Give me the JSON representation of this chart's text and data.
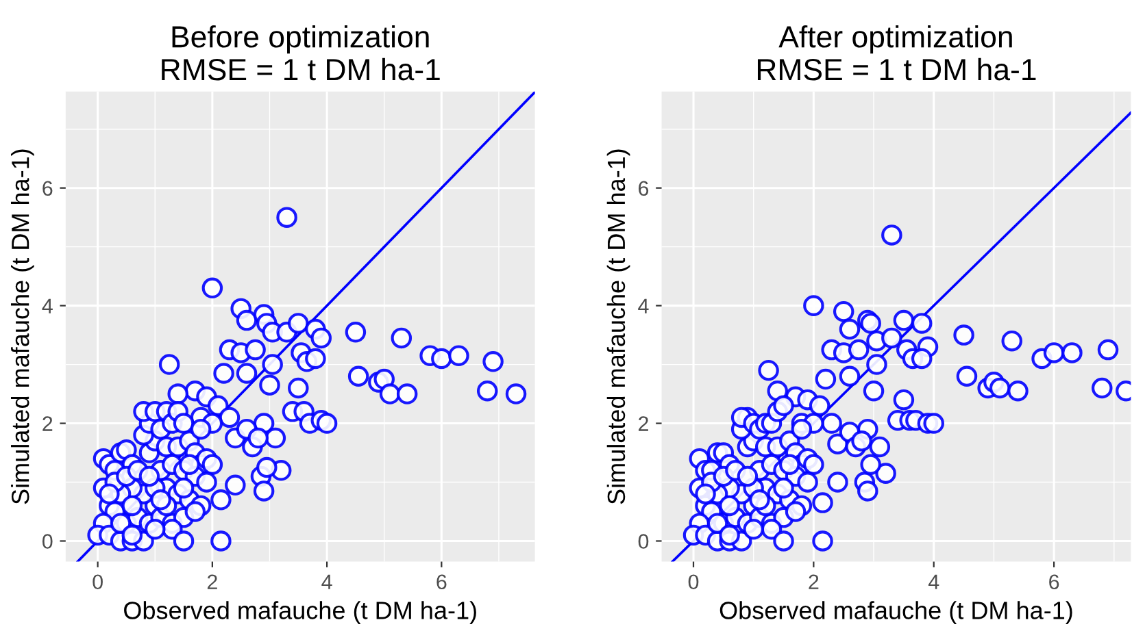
{
  "chart_data": [
    {
      "type": "scatter",
      "title": "Before optimization\nRMSE = 1 t DM ha-1",
      "xlabel": "Observed mafauche (t DM ha-1)",
      "ylabel": "Simulated mafauche (t DM ha-1)",
      "xlim": [
        -0.56,
        7.63
      ],
      "ylim": [
        -0.35,
        7.64
      ],
      "xticks": [
        0,
        2,
        4,
        6
      ],
      "yticks": [
        0,
        2,
        4,
        6
      ],
      "grid": true,
      "series": [
        {
          "marker": "circle",
          "color": "#0000ff",
          "x": [
            3.3,
            2.0,
            2.5,
            2.6,
            2.9,
            2.95,
            3.05,
            3.3,
            3.5,
            3.8,
            3.9,
            4.5,
            5.3,
            5.8,
            6.0,
            6.3,
            6.9,
            4.55,
            4.9,
            5.0,
            5.1,
            5.4,
            6.8,
            7.3,
            2.3,
            2.5,
            2.75,
            3.05,
            3.55,
            3.65,
            3.8,
            1.25,
            2.2,
            2.6,
            3.0,
            3.5,
            3.4,
            3.6,
            3.7,
            3.9,
            4.0,
            2.9,
            3.1,
            2.4,
            2.6,
            2.7,
            2.8,
            3.2,
            2.85,
            2.9,
            2.95,
            2.4,
            2.15,
            2.15,
            1.7,
            1.4,
            1.9,
            2.1,
            2.3,
            1.8,
            2.0,
            0.1,
            0.2,
            0.4,
            0.5,
            0.6,
            0.3,
            0.1,
            0.2,
            0.3,
            0.1,
            0.0,
            0.2,
            0.4,
            0.6,
            0.8,
            0.5,
            0.7,
            0.9,
            1.0,
            0.8,
            0.6,
            0.4,
            0.3,
            0.5,
            0.7,
            0.9,
            1.0,
            0.8,
            0.9,
            0.8,
            1.0,
            1.1,
            1.2,
            1.3,
            1.4,
            1.5,
            1.2,
            1.4,
            1.6,
            1.7,
            1.8,
            1.9,
            2.0,
            1.1,
            1.3,
            1.5,
            1.7,
            1.9,
            1.2,
            1.4,
            1.6,
            1.8,
            1.0,
            1.1,
            1.3,
            1.5,
            1.7,
            1.3,
            1.5,
            1.0,
            0.6,
            0.2,
            1.5,
            1.6,
            1.2,
            0.4,
            0.6,
            1.1,
            0.9,
            1.8
          ],
          "values": [
            5.5,
            4.3,
            3.95,
            3.75,
            3.85,
            3.7,
            3.55,
            3.55,
            3.7,
            3.6,
            3.45,
            3.55,
            3.45,
            3.15,
            3.1,
            3.15,
            3.05,
            2.8,
            2.7,
            2.75,
            2.5,
            2.5,
            2.55,
            2.5,
            3.25,
            3.2,
            3.25,
            3.0,
            3.2,
            3.05,
            3.1,
            3.0,
            2.85,
            2.85,
            2.65,
            2.6,
            2.2,
            2.2,
            2.0,
            2.05,
            2.0,
            2.0,
            1.75,
            1.75,
            1.9,
            1.6,
            1.75,
            1.2,
            1.1,
            0.85,
            1.25,
            0.95,
            0.7,
            0.0,
            2.55,
            2.5,
            2.45,
            2.3,
            2.1,
            2.1,
            2.0,
            1.4,
            1.3,
            1.5,
            1.55,
            1.3,
            1.2,
            0.9,
            0.6,
            0.5,
            0.3,
            0.1,
            0.1,
            0.0,
            0.0,
            0.0,
            0.3,
            0.4,
            0.3,
            0.6,
            0.8,
            0.9,
            0.8,
            1.0,
            1.1,
            1.2,
            1.5,
            1.7,
            1.8,
            2.0,
            2.2,
            2.2,
            1.9,
            2.2,
            2.0,
            2.2,
            2.0,
            1.6,
            1.6,
            1.7,
            1.5,
            1.3,
            1.4,
            1.3,
            1.2,
            1.3,
            1.2,
            1.1,
            1.0,
            0.9,
            0.8,
            0.7,
            0.6,
            0.9,
            0.4,
            0.3,
            0.4,
            0.5,
            0.2,
            0.0,
            0.2,
            0.6,
            0.8,
            0.9,
            1.3,
            0.6,
            0.3,
            0.1,
            0.7,
            1.1,
            1.9
          ]
        },
        {
          "type": "line",
          "color": "#0000ff",
          "x": [
            -0.35,
            7.63
          ],
          "values": [
            -0.35,
            7.63
          ]
        }
      ]
    },
    {
      "type": "scatter",
      "title": "After optimization\nRMSE = 1 t DM ha-1",
      "xlabel": "Observed mafauche (t DM ha-1)",
      "ylabel": "Simulated mafauche (t DM ha-1)",
      "xlim": [
        -0.53,
        7.28
      ],
      "ylim": [
        -0.35,
        7.64
      ],
      "xticks": [
        0,
        2,
        4,
        6
      ],
      "yticks": [
        0,
        2,
        4,
        6
      ],
      "grid": true,
      "series": [
        {
          "marker": "circle",
          "color": "#0000ff",
          "x": [
            3.3,
            2.0,
            2.5,
            2.6,
            2.9,
            2.95,
            3.05,
            3.3,
            3.5,
            3.8,
            3.9,
            4.5,
            5.3,
            5.8,
            6.0,
            6.3,
            6.9,
            4.55,
            4.9,
            5.0,
            5.1,
            5.4,
            6.8,
            7.2,
            2.3,
            2.5,
            2.75,
            3.05,
            3.55,
            3.65,
            3.8,
            1.25,
            2.2,
            2.6,
            3.0,
            3.5,
            3.4,
            3.6,
            3.7,
            3.9,
            4.0,
            2.9,
            3.1,
            2.4,
            2.6,
            2.7,
            2.8,
            3.2,
            2.85,
            2.9,
            2.95,
            2.4,
            2.15,
            2.15,
            1.7,
            1.4,
            1.9,
            2.1,
            2.3,
            1.8,
            2.0,
            0.1,
            0.2,
            0.4,
            0.5,
            0.6,
            0.3,
            0.1,
            0.2,
            0.3,
            0.1,
            0.0,
            0.2,
            0.4,
            0.6,
            0.8,
            0.5,
            0.7,
            0.9,
            1.0,
            0.8,
            0.6,
            0.4,
            0.3,
            0.5,
            0.7,
            0.9,
            1.0,
            0.8,
            0.9,
            0.8,
            1.0,
            1.1,
            1.2,
            1.3,
            1.4,
            1.5,
            1.2,
            1.4,
            1.6,
            1.7,
            1.8,
            1.9,
            2.0,
            1.1,
            1.3,
            1.5,
            1.7,
            1.9,
            1.2,
            1.4,
            1.6,
            1.8,
            1.0,
            1.1,
            1.3,
            1.5,
            1.7,
            1.3,
            1.5,
            1.0,
            0.6,
            0.2,
            1.5,
            1.6,
            1.2,
            0.4,
            0.6,
            1.1,
            0.9,
            1.8
          ],
          "values": [
            5.2,
            4.0,
            3.9,
            3.6,
            3.75,
            3.7,
            3.4,
            3.45,
            3.75,
            3.7,
            3.3,
            3.5,
            3.4,
            3.1,
            3.2,
            3.2,
            3.25,
            2.8,
            2.6,
            2.7,
            2.6,
            2.55,
            2.6,
            2.55,
            3.25,
            3.2,
            3.25,
            3.0,
            3.25,
            3.1,
            3.1,
            2.9,
            2.75,
            2.8,
            2.55,
            2.4,
            2.05,
            2.05,
            2.05,
            2.0,
            2.0,
            1.9,
            1.6,
            1.65,
            1.85,
            1.6,
            1.7,
            1.15,
            1.0,
            0.85,
            1.3,
            1.0,
            0.65,
            0.0,
            2.45,
            2.55,
            2.4,
            2.3,
            2.0,
            2.0,
            2.0,
            1.4,
            1.2,
            1.5,
            1.5,
            1.3,
            1.2,
            0.9,
            0.6,
            0.5,
            0.3,
            0.1,
            0.1,
            0.0,
            0.0,
            0.0,
            0.3,
            0.4,
            0.3,
            0.6,
            0.8,
            0.9,
            0.8,
            1.0,
            1.1,
            1.2,
            1.6,
            1.7,
            1.9,
            2.1,
            2.1,
            2.0,
            1.9,
            2.0,
            2.0,
            2.2,
            2.3,
            1.6,
            1.6,
            1.7,
            1.5,
            1.3,
            1.4,
            1.3,
            1.2,
            1.3,
            1.2,
            1.1,
            1.0,
            0.9,
            0.8,
            0.7,
            0.6,
            0.9,
            0.4,
            0.3,
            0.4,
            0.5,
            0.2,
            0.0,
            0.2,
            0.6,
            0.8,
            0.9,
            1.3,
            0.6,
            0.3,
            0.1,
            0.7,
            1.1,
            1.9
          ]
        },
        {
          "type": "line",
          "color": "#0000ff",
          "x": [
            -0.35,
            7.28
          ],
          "values": [
            -0.35,
            7.28
          ]
        }
      ]
    }
  ]
}
